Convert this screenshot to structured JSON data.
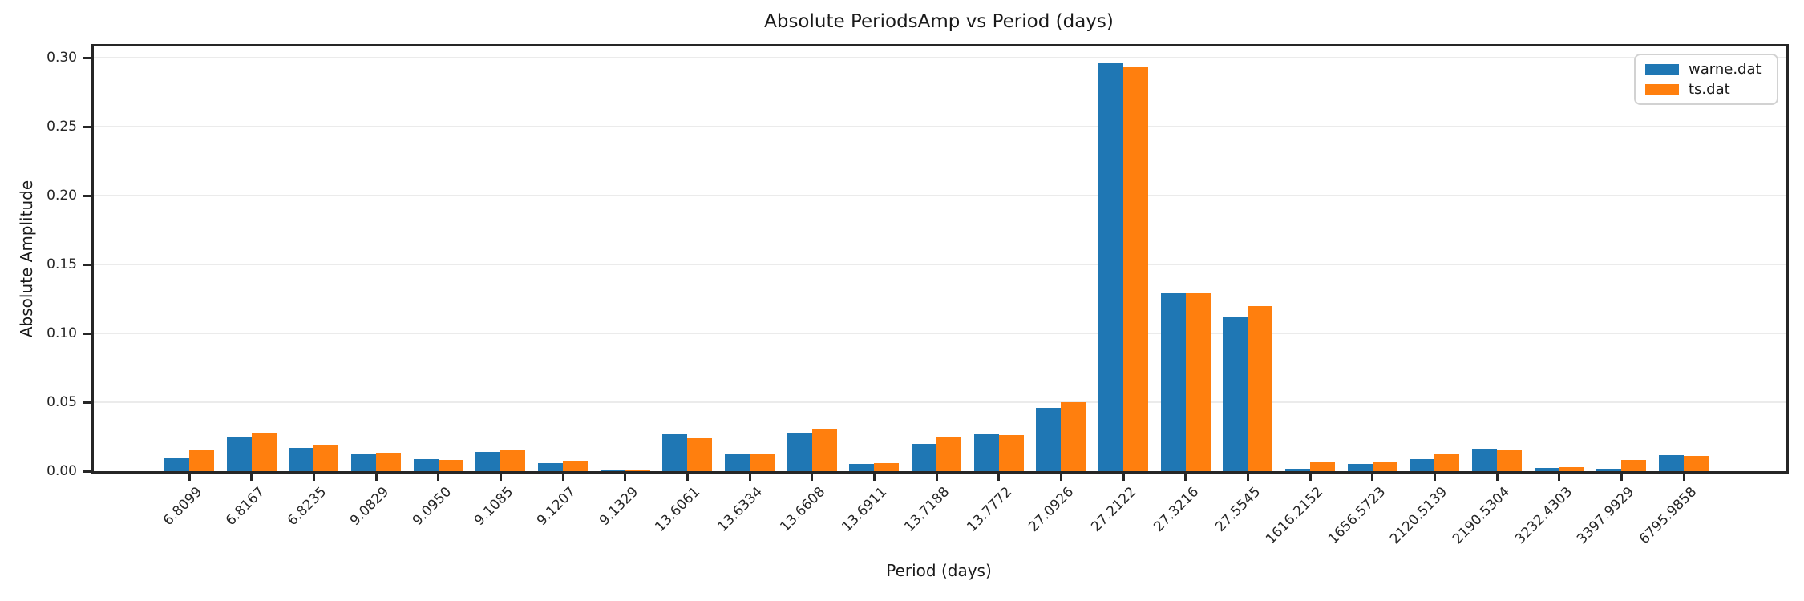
{
  "title": "Absolute PeriodsAmp vs Period (days)",
  "chart_data": {
    "type": "bar",
    "title": "Absolute PeriodsAmp vs Period (days)",
    "xlabel": "Period (days)",
    "ylabel": "Absolute Amplitude",
    "grid": true,
    "legend_position": "upper right",
    "ylim": [
      0,
      0.308
    ],
    "yticks": [
      "0.00",
      "0.05",
      "0.10",
      "0.15",
      "0.20",
      "0.25",
      "0.30"
    ],
    "categories": [
      "6.8099",
      "6.8167",
      "6.8235",
      "9.0829",
      "9.0950",
      "9.1085",
      "9.1207",
      "9.1329",
      "13.6061",
      "13.6334",
      "13.6608",
      "13.6911",
      "13.7188",
      "13.7772",
      "27.0926",
      "27.2122",
      "27.3216",
      "27.5545",
      "1616.2152",
      "1656.5723",
      "2120.5139",
      "2190.5304",
      "3232.4303",
      "3397.9929",
      "6795.9858"
    ],
    "series": [
      {
        "name": "warne.dat",
        "color": "#1f77b4",
        "values": [
          0.01,
          0.025,
          0.017,
          0.013,
          0.009,
          0.014,
          0.006,
          0.0003,
          0.027,
          0.013,
          0.028,
          0.0055,
          0.02,
          0.027,
          0.046,
          0.296,
          0.129,
          0.112,
          0.002,
          0.005,
          0.009,
          0.0163,
          0.0025,
          0.002,
          0.0115
        ],
        "legend_label": "warne.dat"
      },
      {
        "name": "ts.dat",
        "color": "#ff7f0e",
        "values": [
          0.015,
          0.028,
          0.019,
          0.0135,
          0.008,
          0.015,
          0.0075,
          0.0003,
          0.024,
          0.013,
          0.031,
          0.006,
          0.025,
          0.026,
          0.05,
          0.293,
          0.129,
          0.12,
          0.007,
          0.007,
          0.013,
          0.0157,
          0.003,
          0.008,
          0.0113
        ],
        "legend_label": "ts.dat"
      }
    ]
  }
}
